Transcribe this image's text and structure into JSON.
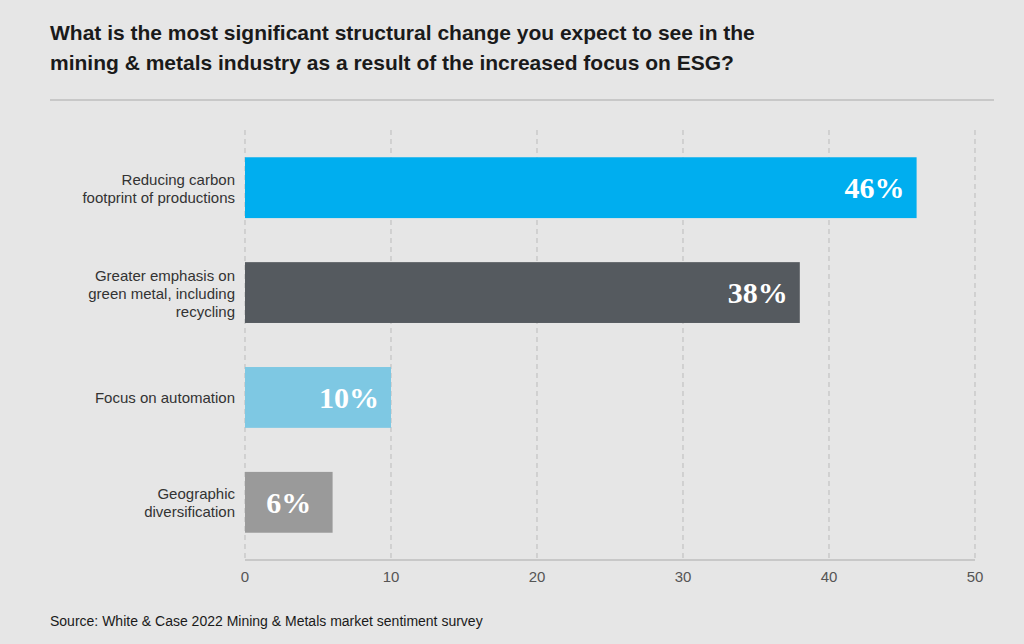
{
  "chart_data": {
    "type": "bar",
    "orientation": "horizontal",
    "title": "What is the most significant structural change you expect to see in the\nmining & metals industry as a result of the increased focus on ESG?",
    "categories": [
      "Geographic\ndiversification",
      "Focus on automation",
      "Greater emphasis on\ngreen metal, including\nrecycling",
      "Reducing carbon\nfootprint of productions"
    ],
    "values": [
      6,
      10,
      38,
      46
    ],
    "value_labels": [
      "6%",
      "10%",
      "38%",
      "46%"
    ],
    "colors": [
      "#9a9a9a",
      "#7ec8e3",
      "#555a5f",
      "#00aeef"
    ],
    "xlim": [
      0,
      50
    ],
    "xticks": [
      0,
      10,
      20,
      30,
      40,
      50
    ],
    "grid": true,
    "data_labels": true,
    "annotations": [
      "Source: White & Case 2022 Mining & Metals market sentiment survey"
    ]
  }
}
